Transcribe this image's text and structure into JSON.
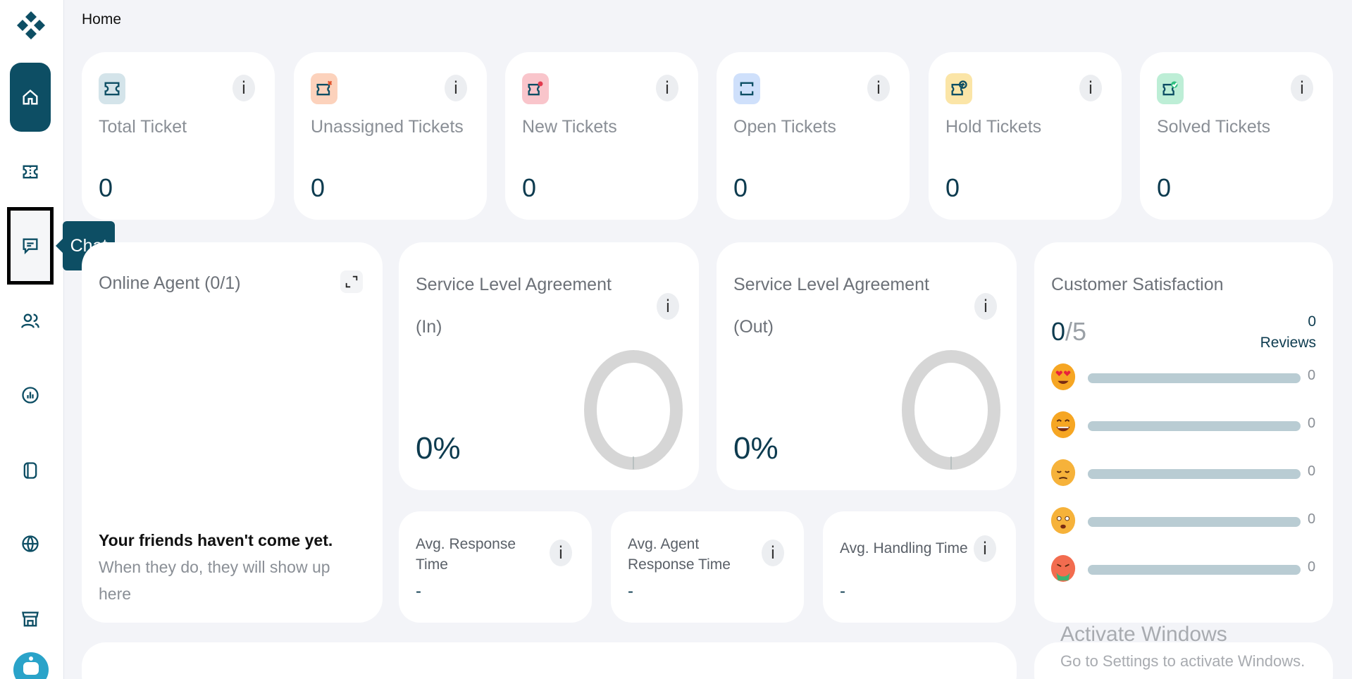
{
  "breadcrumb": "Home",
  "sidebar": {
    "tooltip": "Chat",
    "items": [
      {
        "name": "home",
        "icon": "home-icon"
      },
      {
        "name": "tickets",
        "icon": "ticket-icon"
      },
      {
        "name": "chat",
        "icon": "chat-icon"
      },
      {
        "name": "users",
        "icon": "users-icon"
      },
      {
        "name": "reports",
        "icon": "report-icon"
      },
      {
        "name": "knowledge",
        "icon": "book-icon"
      },
      {
        "name": "web",
        "icon": "globe-icon"
      },
      {
        "name": "store",
        "icon": "store-icon"
      }
    ]
  },
  "stats": [
    {
      "label": "Total Ticket",
      "value": "0",
      "color": "#d4e4ea"
    },
    {
      "label": "Unassigned Tickets",
      "value": "0",
      "color": "#fcd2bc"
    },
    {
      "label": "New Tickets",
      "value": "0",
      "color": "#f9c5cb"
    },
    {
      "label": "Open Tickets",
      "value": "0",
      "color": "#cfe0fb"
    },
    {
      "label": "Hold Tickets",
      "value": "0",
      "color": "#fbe5a7"
    },
    {
      "label": "Solved Tickets",
      "value": "0",
      "color": "#bdeed6"
    }
  ],
  "online_agent": {
    "title": "Online Agent (0/1)",
    "empty_bold": "Your friends haven't come yet.",
    "empty_rest": " When they do, they will show up here"
  },
  "sla_in": {
    "title": "Service Level Agreement",
    "subtitle": "(In)",
    "value": "0%"
  },
  "sla_out": {
    "title": "Service Level Agreement",
    "subtitle": "(Out)",
    "value": "0%"
  },
  "metrics": [
    {
      "label": "Avg. Response Time",
      "value": "-"
    },
    {
      "label": "Avg. Agent Response Time",
      "value": "-"
    },
    {
      "label": "Avg. Handling Time",
      "value": "-"
    }
  ],
  "satisfaction": {
    "title": "Customer Satisfaction",
    "score": "0",
    "max": "/5",
    "reviews_count": "0",
    "reviews_label": "Reviews",
    "rows": [
      {
        "emoji": "heart-eyes-emoji",
        "count": "0",
        "fraction": 0
      },
      {
        "emoji": "grinning-emoji",
        "count": "0",
        "fraction": 0
      },
      {
        "emoji": "pensive-emoji",
        "count": "0",
        "fraction": 0
      },
      {
        "emoji": "worried-emoji",
        "count": "0",
        "fraction": 0
      },
      {
        "emoji": "nauseated-emoji",
        "count": "0",
        "fraction": 0
      }
    ]
  },
  "watermark": {
    "line1": "Activate Windows",
    "line2": "Go to Settings to activate Windows."
  },
  "info_glyph": "i"
}
